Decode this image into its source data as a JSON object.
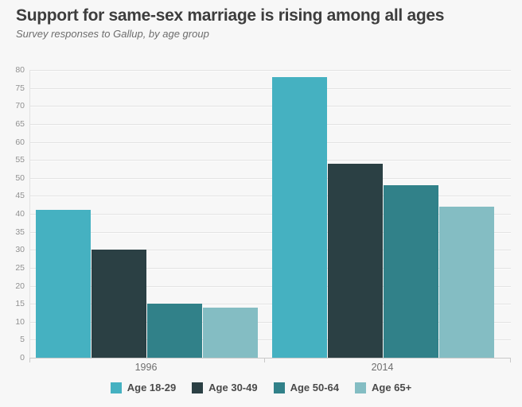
{
  "header": {
    "title": "Support for same-sex marriage is rising among all ages",
    "subtitle": "Survey responses to Gallup, by age group"
  },
  "colors": {
    "background": "#f7f7f7",
    "gridline": "#e3e3e3",
    "axis_line": "#c9c9c9",
    "ytick_text": "#919191",
    "xtick_text": "#6e6e6e",
    "title_text": "#3d3d3d",
    "subtitle_text": "#6d6d6d",
    "legend_text": "#4a4a4a"
  },
  "chart_data": {
    "type": "bar",
    "title": "Support for same-sex marriage is rising among all ages",
    "subtitle": "Survey responses to Gallup, by age group",
    "categories": [
      "1996",
      "2014"
    ],
    "series": [
      {
        "name": "Age 18-29",
        "color": "#45b1c1",
        "values": [
          41,
          78
        ]
      },
      {
        "name": "Age 30-49",
        "color": "#2b4044",
        "values": [
          30,
          54
        ]
      },
      {
        "name": "Age 50-64",
        "color": "#318189",
        "values": [
          15,
          48
        ]
      },
      {
        "name": "Age 65+",
        "color": "#84bdc3",
        "values": [
          14,
          42
        ]
      }
    ],
    "ylim": [
      0,
      80
    ],
    "yticks": [
      0,
      5,
      10,
      15,
      20,
      25,
      30,
      35,
      40,
      45,
      50,
      55,
      60,
      65,
      70,
      75,
      80
    ],
    "grid": true,
    "legend_position": "bottom"
  }
}
